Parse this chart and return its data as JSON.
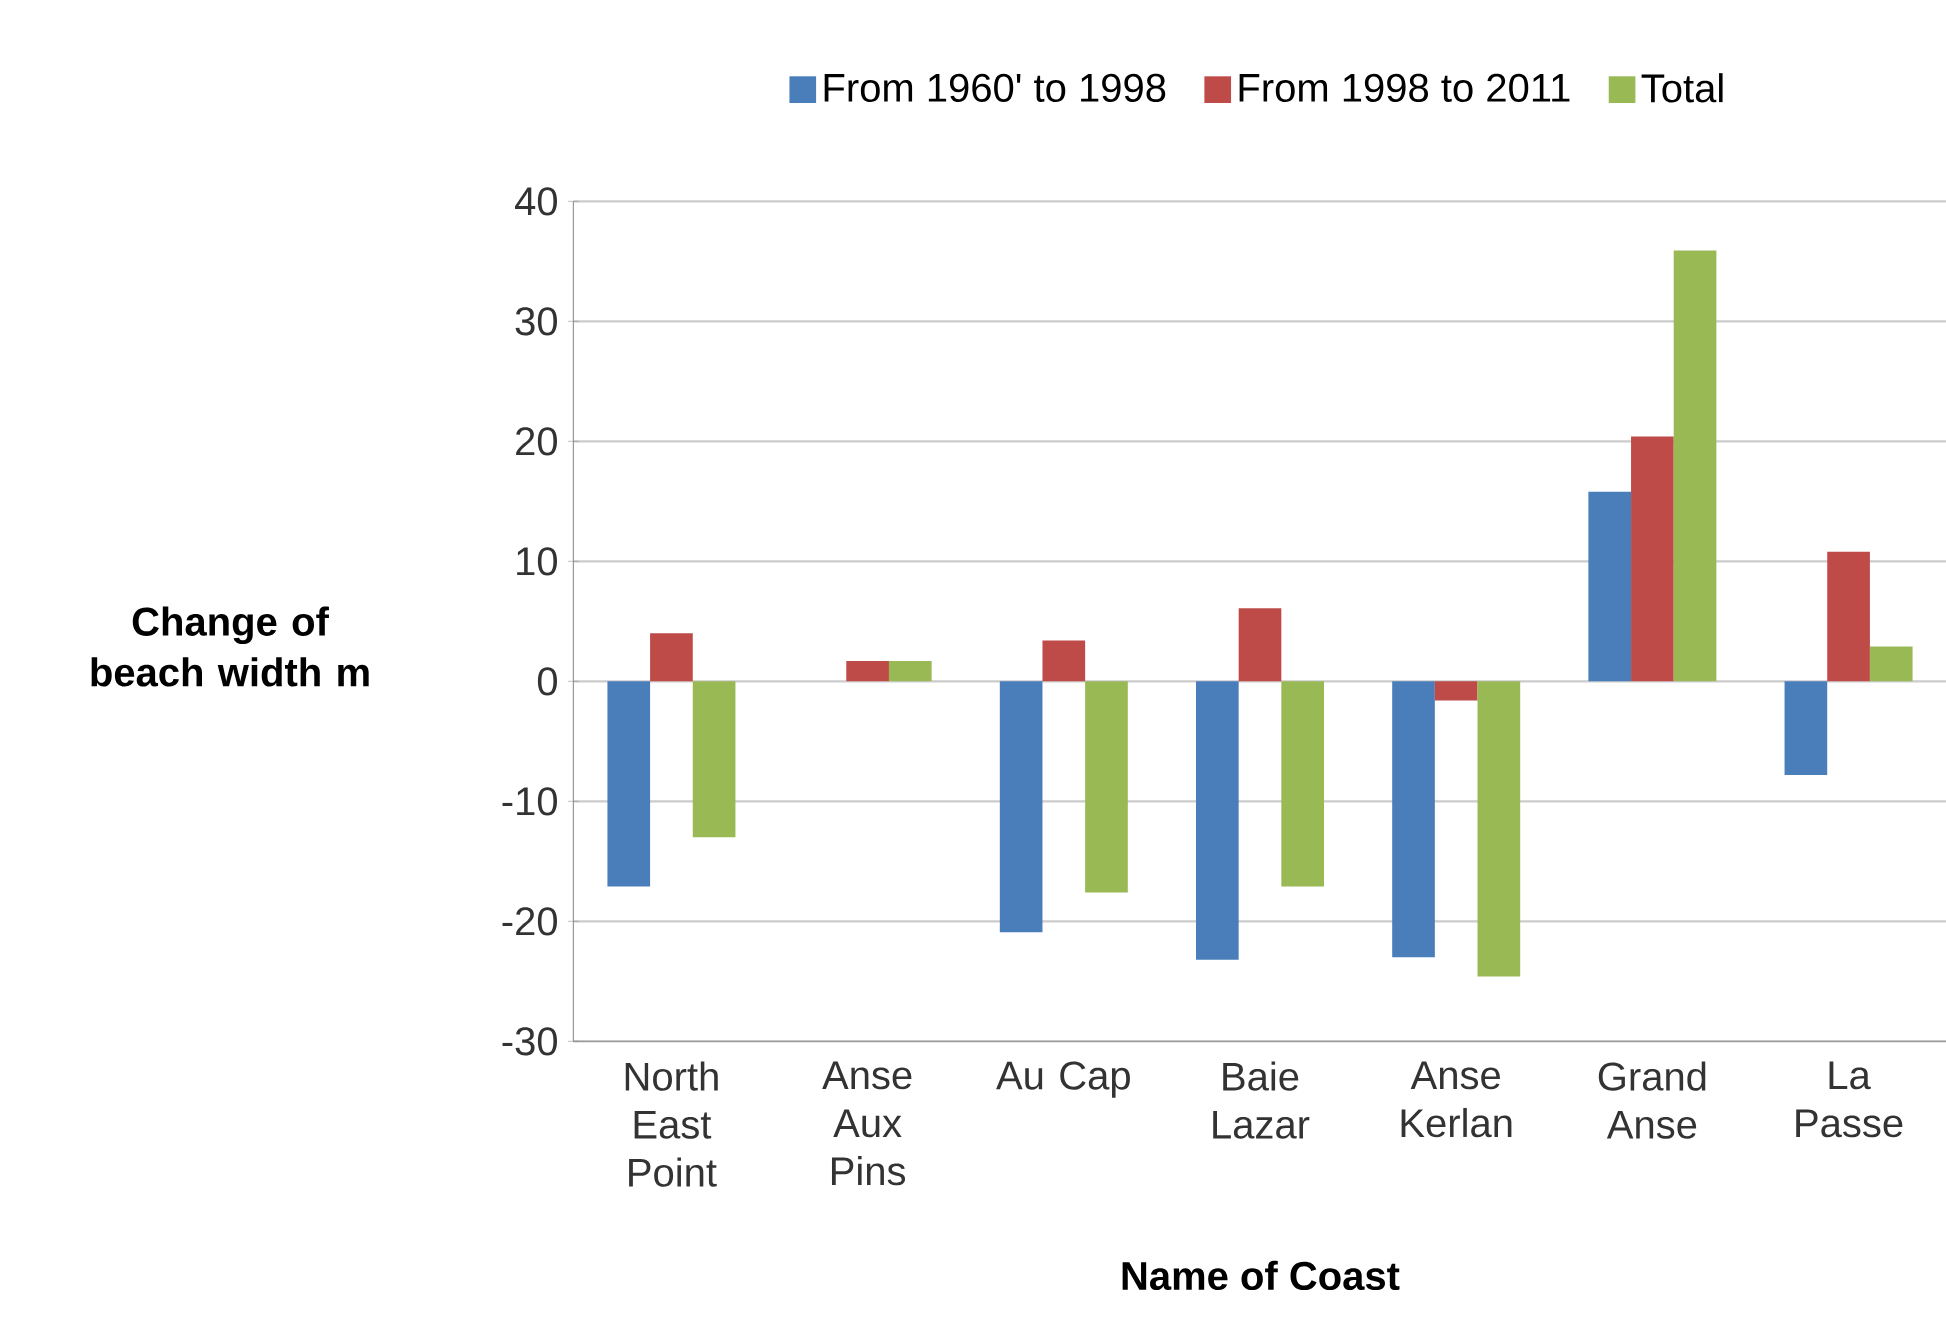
{
  "chart_data": {
    "type": "bar",
    "xlabel": "Name of Coast",
    "ylabel": "Change of beach width m",
    "categories": [
      "North East Point",
      "Anse Aux Pins",
      "Au Cap",
      "Baie Lazar",
      "Anse Kerlan",
      "Grand Anse",
      "La Passe"
    ],
    "series": [
      {
        "name": "From 1960' to 1998",
        "color": "#4a7ebb",
        "values": [
          -17.1,
          0,
          -20.9,
          -23.2,
          -23,
          15.8,
          -7.8
        ]
      },
      {
        "name": "From 1998 to 2011",
        "color": "#be4b48",
        "values": [
          4.0,
          1.7,
          3.4,
          6.1,
          -1.6,
          20.4,
          10.8
        ]
      },
      {
        "name": "Total",
        "color": "#98b954",
        "values": [
          -13.0,
          1.7,
          -17.6,
          -17.1,
          -24.6,
          35.9,
          2.9
        ]
      }
    ],
    "ylim": [
      -30,
      40
    ],
    "yticks": [
      -30,
      -20,
      -10,
      0,
      10,
      20,
      30,
      40
    ],
    "grid": "y",
    "legend": "top"
  }
}
